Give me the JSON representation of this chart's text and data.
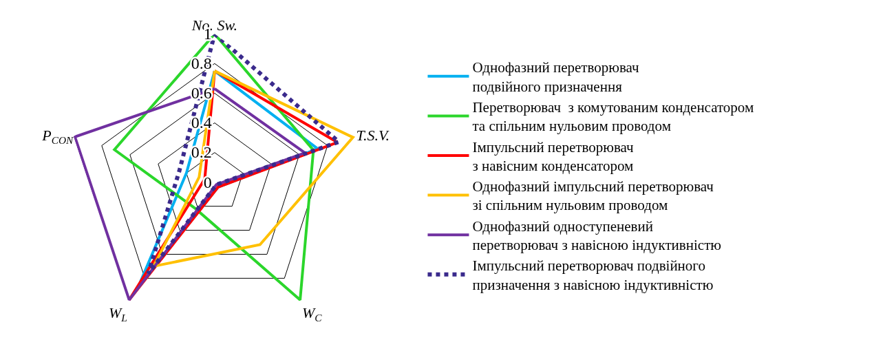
{
  "chart_data": {
    "type": "radar",
    "categories": [
      "No. Sw.",
      "T.S.V.",
      "W$_{C}$",
      "W$_{L}$",
      "P$_{CON}$"
    ],
    "ylim": [
      0,
      1
    ],
    "yticks": [
      0,
      0.2,
      0.4,
      0.6,
      0.8,
      1
    ],
    "grid": true,
    "legend": "right",
    "marker": "none",
    "series": [
      {
        "name": "Однофазний перетворювач подвійного призначення",
        "color": "#00b0f0",
        "line_style": "solid",
        "values": [
          0.75,
          0.73,
          0.04,
          0.88,
          0.2
        ]
      },
      {
        "name": "Перетворювач  з комутованим конденсатором та спільним нульовим проводом",
        "color": "#2bd62b",
        "line_style": "solid",
        "values": [
          1,
          0.7,
          0.98,
          0.22,
          0.71
        ]
      },
      {
        "name": "Імпульсний перетворювач з навісним конденсатором",
        "color": "#ff0000",
        "line_style": "solid",
        "values": [
          0.75,
          0.87,
          0.04,
          0.98,
          0.07
        ]
      },
      {
        "name": "Однофазний імпульсний перетворювач зі спільним нульовим проводом",
        "color": "#ffc000",
        "line_style": "solid",
        "values": [
          0.75,
          0.98,
          0.52,
          0.7,
          0.11
        ]
      },
      {
        "name": "Однофазний одноступеневий перетворювач з навісною індуктивністю",
        "color": "#7030a0",
        "line_style": "solid",
        "values": [
          0.63,
          0.64,
          0.02,
          0.98,
          0.99
        ]
      },
      {
        "name": "Імпульсний перетворювач подвійного призначення з навісною індуктивністю",
        "color": "#3a2a8c",
        "line_style": "dotted",
        "values": [
          1,
          0.88,
          0.02,
          0.76,
          0.25
        ]
      }
    ]
  }
}
